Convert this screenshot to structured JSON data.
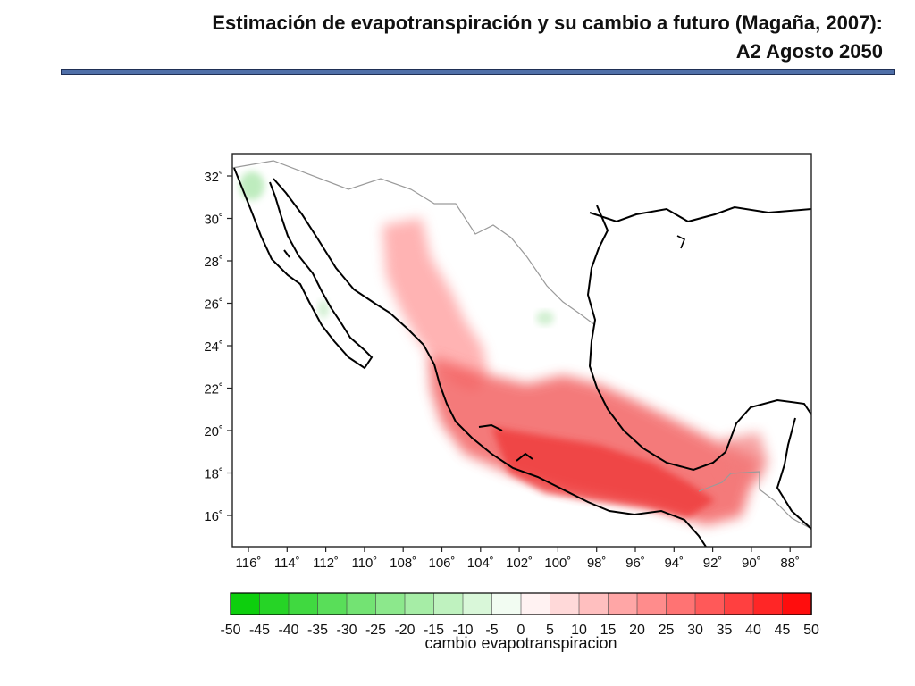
{
  "slide": {
    "title_line1": "Estimación de evapotranspiración y su cambio a futuro (Magaña, 2007):",
    "title_line2": "A2 Agosto 2050"
  },
  "map": {
    "lat_ticks": [
      "32˚",
      "30˚",
      "28˚",
      "26˚",
      "24˚",
      "22˚",
      "20˚",
      "18˚",
      "16˚"
    ],
    "lon_ticks": [
      "116˚",
      "114˚",
      "112˚",
      "110˚",
      "108˚",
      "106˚",
      "104˚",
      "102˚",
      "100˚",
      "98˚",
      "96˚",
      "94˚",
      "92˚",
      "90˚",
      "88˚"
    ],
    "colors": {
      "positive": "#ff0000",
      "negative": "#00cc00",
      "coast": "#000000",
      "border": "#999999"
    }
  },
  "colorbar": {
    "label": "cambio evapotranspiracion",
    "ticks": [
      "-50",
      "-45",
      "-40",
      "-35",
      "-30",
      "-25",
      "-20",
      "-15",
      "-10",
      "-5",
      "0",
      "5",
      "10",
      "15",
      "20",
      "25",
      "30",
      "35",
      "40",
      "45",
      "50"
    ],
    "min": -50,
    "max": 50
  }
}
